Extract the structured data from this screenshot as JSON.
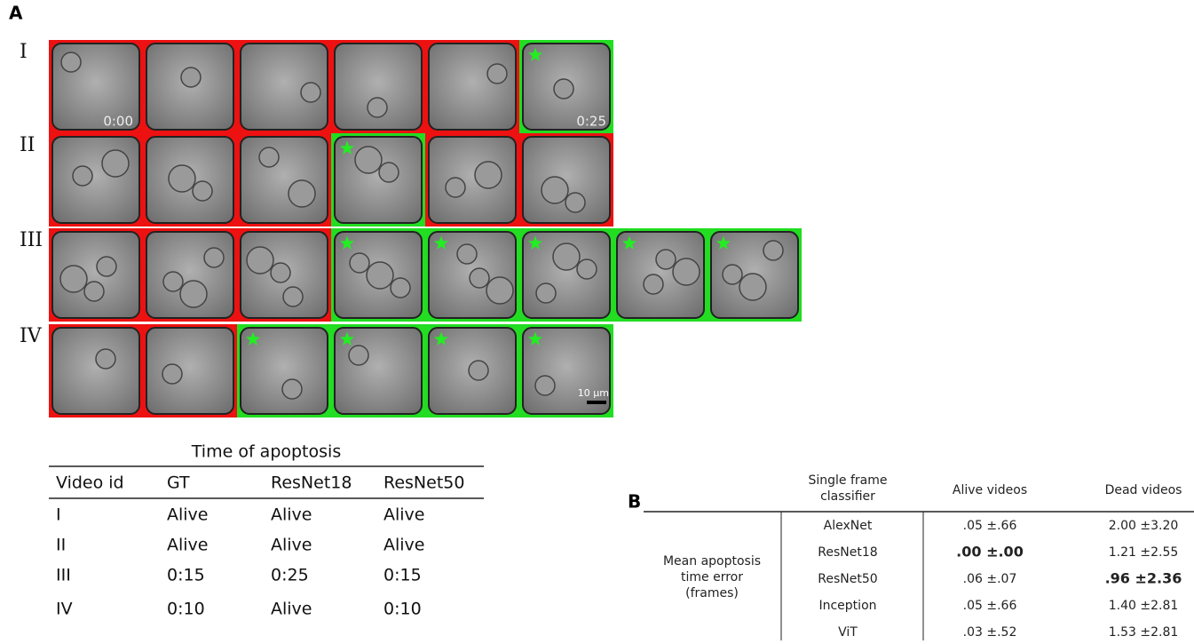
{
  "panel_a": {
    "label": "A",
    "row_labels": [
      "I",
      "II",
      "III",
      "IV"
    ],
    "timestamps": [
      "0:00",
      "0:25"
    ],
    "scale_bar": "10 µm"
  },
  "table_a": {
    "title": "Time of apoptosis",
    "header": [
      "Video id",
      "GT",
      "ResNet18",
      "ResNet50"
    ],
    "rows": [
      [
        "I",
        "Alive",
        "Alive",
        "Alive"
      ],
      [
        "II",
        "Alive",
        "Alive",
        "Alive"
      ],
      [
        "III",
        "0:15",
        "0:25",
        "0:15"
      ],
      [
        "IV",
        "0:10",
        "Alive",
        "0:10"
      ]
    ]
  },
  "panel_b": {
    "label": "B",
    "header": [
      "Single frame classifier",
      "Alive videos",
      "Dead videos"
    ],
    "row_group": "Mean apoptosis time error (frames)",
    "rows": [
      [
        "AlexNet",
        ".05 ±.66",
        "2.00 ±3.20"
      ],
      [
        "ResNet18",
        ".00 ±.00",
        "1.21 ±2.55"
      ],
      [
        "ResNet50",
        ".06 ±.07",
        ".96 ±2.36"
      ],
      [
        "Inception",
        ".05 ±.66",
        "1.40 ±2.81"
      ],
      [
        "ViT",
        ".03 ±.52",
        "1.53 ±2.81"
      ]
    ]
  }
}
